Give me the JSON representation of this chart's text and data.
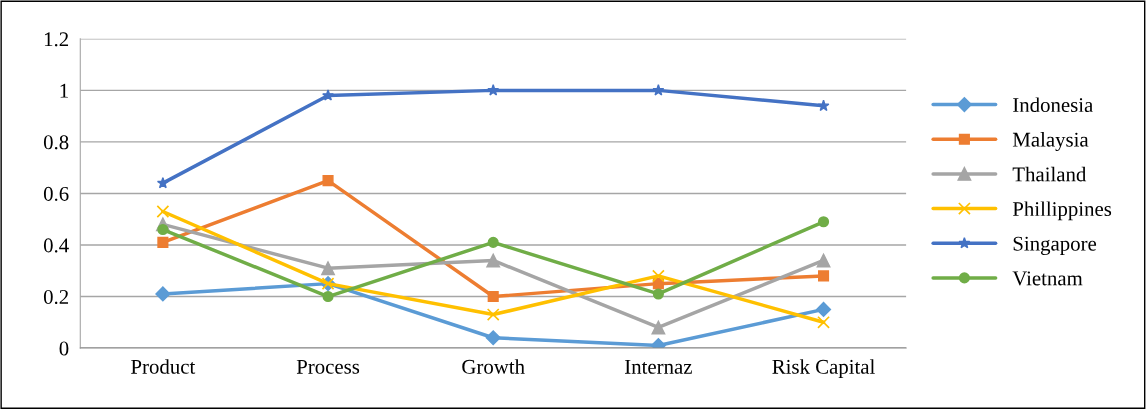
{
  "chart_data": {
    "type": "line",
    "categories": [
      "Product",
      "Process",
      "Growth",
      "Internaz",
      "Risk Capital"
    ],
    "ylim": [
      0,
      1.2
    ],
    "yticks": [
      0,
      0.2,
      0.4,
      0.6,
      0.8,
      1,
      1.2
    ],
    "grid": "y",
    "legend": "right",
    "series": [
      {
        "name": "Indonesia",
        "color": "#5b9bd5",
        "marker": "diamond",
        "values": [
          0.21,
          0.25,
          0.04,
          0.01,
          0.15
        ]
      },
      {
        "name": "Malaysia",
        "color": "#ed7d31",
        "marker": "square",
        "values": [
          0.41,
          0.65,
          0.2,
          0.25,
          0.28
        ]
      },
      {
        "name": "Thailand",
        "color": "#a5a5a5",
        "marker": "triangle",
        "values": [
          0.48,
          0.31,
          0.34,
          0.08,
          0.34
        ]
      },
      {
        "name": "Phillippines",
        "color": "#ffc000",
        "marker": "cross",
        "values": [
          0.53,
          0.25,
          0.13,
          0.28,
          0.1
        ]
      },
      {
        "name": "Singapore",
        "color": "#4472c4",
        "marker": "star",
        "values": [
          0.64,
          0.98,
          1.0,
          1.0,
          0.94
        ]
      },
      {
        "name": "Vietnam",
        "color": "#70ad47",
        "marker": "circle",
        "values": [
          0.46,
          0.2,
          0.41,
          0.21,
          0.49
        ]
      }
    ]
  }
}
